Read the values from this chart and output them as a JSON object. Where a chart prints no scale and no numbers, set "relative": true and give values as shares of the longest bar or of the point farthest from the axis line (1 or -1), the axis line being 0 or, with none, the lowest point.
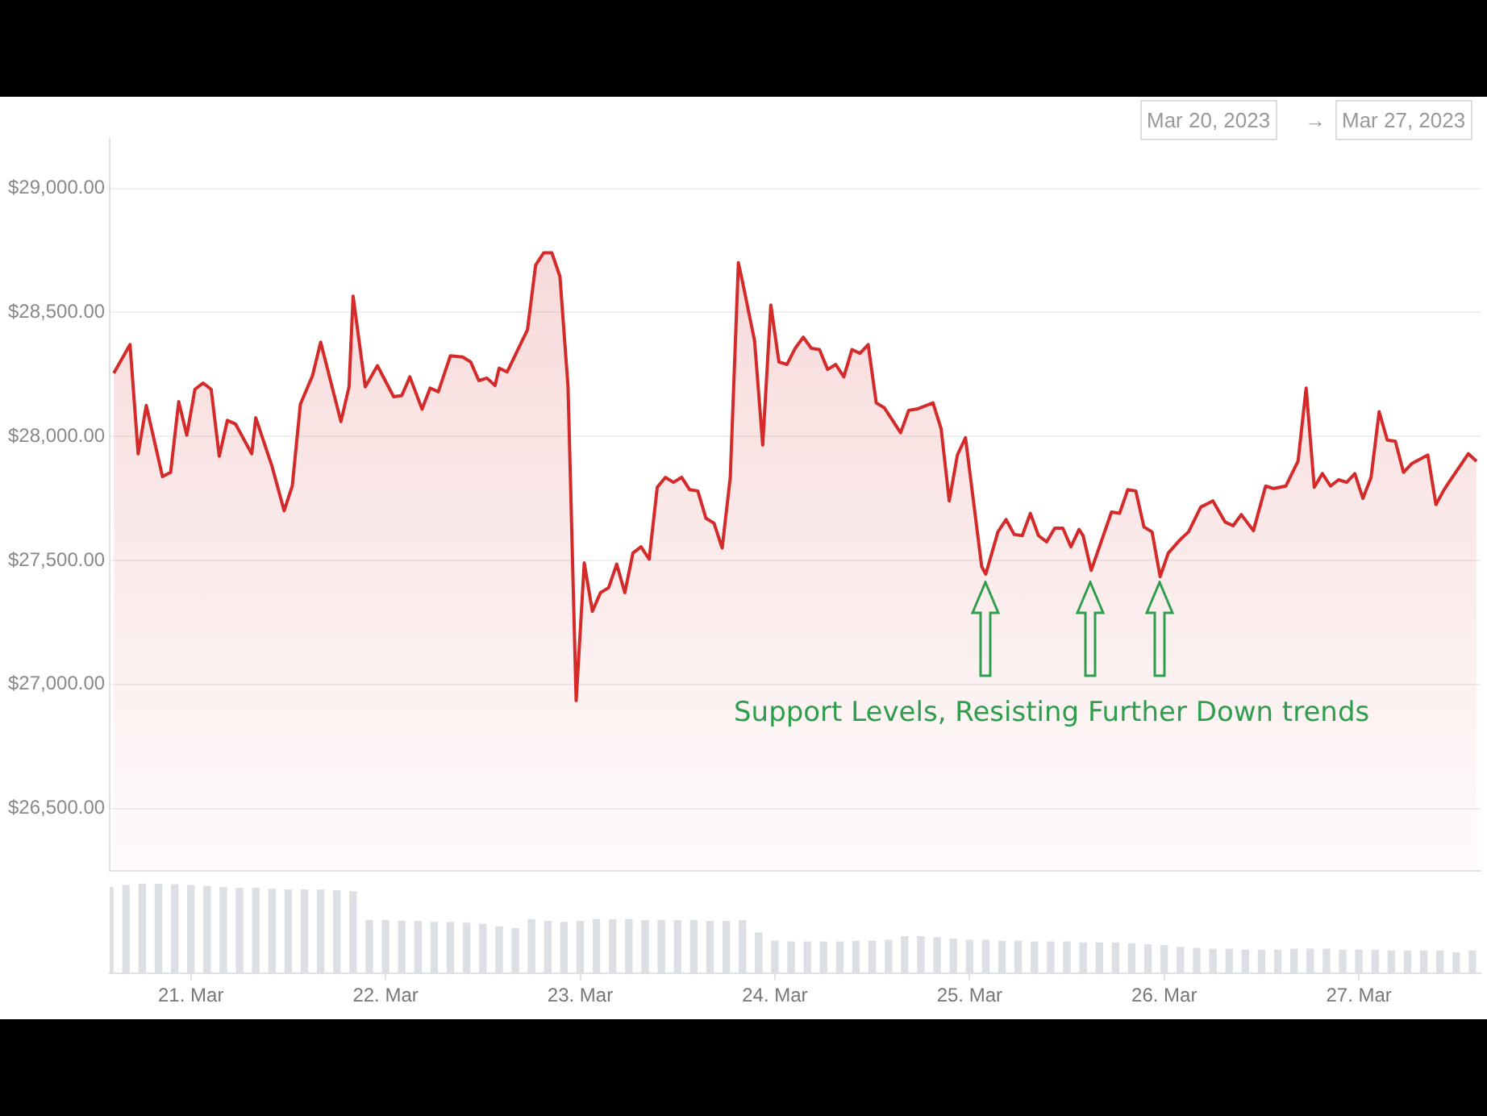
{
  "chart_data": [
    {
      "type": "area",
      "color": "#d42a2a",
      "grid": "y",
      "tick_labels": "y",
      "xlim": [
        "2023-03-20T14:00",
        "2023-03-27T15:00"
      ],
      "ylim": [
        26250,
        29200
      ],
      "yticks": [
        {
          "value": 26500,
          "label": "$26,500.00"
        },
        {
          "value": 27000,
          "label": "$27,000.00"
        },
        {
          "value": 27500,
          "label": "$27,500.00"
        },
        {
          "value": 28000,
          "label": "$28,000.00"
        },
        {
          "value": 28500,
          "label": "$28,500.00"
        },
        {
          "value": 29000,
          "label": "$29,000.00"
        }
      ],
      "annotations": [
        "Support Levels, Resisting Further  Down trends",
        "Mar 20, 2023",
        "→",
        "Mar 27, 2023"
      ],
      "x": [
        "2023-03-20T14:30",
        "2023-03-20T16:30",
        "2023-03-20T17:30",
        "2023-03-20T18:30",
        "2023-03-20T20:30",
        "2023-03-20T21:30",
        "2023-03-20T22:30",
        "2023-03-20T23:30",
        "2023-03-21T00:30",
        "2023-03-21T01:30",
        "2023-03-21T02:30",
        "2023-03-21T03:30",
        "2023-03-21T04:30",
        "2023-03-21T05:30",
        "2023-03-21T07:30",
        "2023-03-21T08:00",
        "2023-03-21T10:00",
        "2023-03-21T11:30",
        "2023-03-21T12:30",
        "2023-03-21T13:30",
        "2023-03-21T15:00",
        "2023-03-21T16:00",
        "2023-03-21T18:30",
        "2023-03-21T19:30",
        "2023-03-21T20:00",
        "2023-03-21T21:30",
        "2023-03-21T23:00",
        "2023-03-22T01:00",
        "2023-03-22T02:00",
        "2023-03-22T03:00",
        "2023-03-22T04:30",
        "2023-03-22T05:30",
        "2023-03-22T06:30",
        "2023-03-22T08:00",
        "2023-03-22T09:30",
        "2023-03-22T10:30",
        "2023-03-22T11:30",
        "2023-03-22T12:30",
        "2023-03-22T13:30",
        "2023-03-22T14:00",
        "2023-03-22T15:00",
        "2023-03-22T17:30",
        "2023-03-22T18:30",
        "2023-03-22T19:30",
        "2023-03-22T20:30",
        "2023-03-22T21:30",
        "2023-03-22T22:30",
        "2023-03-22T23:30",
        "2023-03-23T00:30",
        "2023-03-23T01:30",
        "2023-03-23T02:30",
        "2023-03-23T03:30",
        "2023-03-23T04:30",
        "2023-03-23T05:30",
        "2023-03-23T06:30",
        "2023-03-23T07:30",
        "2023-03-23T08:30",
        "2023-03-23T09:30",
        "2023-03-23T10:30",
        "2023-03-23T11:30",
        "2023-03-23T12:30",
        "2023-03-23T13:30",
        "2023-03-23T14:30",
        "2023-03-23T15:30",
        "2023-03-23T16:30",
        "2023-03-23T17:30",
        "2023-03-23T18:30",
        "2023-03-23T19:30",
        "2023-03-23T20:00",
        "2023-03-23T21:30",
        "2023-03-23T22:30",
        "2023-03-23T23:30",
        "2023-03-24T00:30",
        "2023-03-24T01:30",
        "2023-03-24T02:30",
        "2023-03-24T03:30",
        "2023-03-24T04:30",
        "2023-03-24T05:30",
        "2023-03-24T06:30",
        "2023-03-24T07:30",
        "2023-03-24T08:30",
        "2023-03-24T09:30",
        "2023-03-24T10:30",
        "2023-03-24T11:30",
        "2023-03-24T12:30",
        "2023-03-24T13:30",
        "2023-03-24T15:30",
        "2023-03-24T16:30",
        "2023-03-24T17:30",
        "2023-03-24T19:30",
        "2023-03-24T20:30",
        "2023-03-24T21:30",
        "2023-03-24T22:30",
        "2023-03-24T23:30",
        "2023-03-25T01:30",
        "2023-03-25T02:00",
        "2023-03-25T03:30",
        "2023-03-25T04:30",
        "2023-03-25T05:30",
        "2023-03-25T06:30",
        "2023-03-25T07:30",
        "2023-03-25T08:30",
        "2023-03-25T09:30",
        "2023-03-25T10:30",
        "2023-03-25T11:30",
        "2023-03-25T12:30",
        "2023-03-25T13:30",
        "2023-03-25T14:00",
        "2023-03-25T15:00",
        "2023-03-25T17:30",
        "2023-03-25T18:30",
        "2023-03-25T19:30",
        "2023-03-25T20:30",
        "2023-03-25T21:30",
        "2023-03-25T22:30",
        "2023-03-25T23:30",
        "2023-03-26T00:30",
        "2023-03-26T02:00",
        "2023-03-26T03:00",
        "2023-03-26T04:30",
        "2023-03-26T06:00",
        "2023-03-26T07:30",
        "2023-03-26T08:30",
        "2023-03-26T09:30",
        "2023-03-26T11:00",
        "2023-03-26T12:30",
        "2023-03-26T13:30",
        "2023-03-26T15:00",
        "2023-03-26T16:30",
        "2023-03-26T17:30",
        "2023-03-26T18:30",
        "2023-03-26T19:30",
        "2023-03-26T20:30",
        "2023-03-26T21:30",
        "2023-03-26T22:30",
        "2023-03-26T23:30",
        "2023-03-27T00:30",
        "2023-03-27T01:30",
        "2023-03-27T02:30",
        "2023-03-27T03:30",
        "2023-03-27T04:30",
        "2023-03-27T05:30",
        "2023-03-27T06:30",
        "2023-03-27T08:30",
        "2023-03-27T09:30",
        "2023-03-27T10:30",
        "2023-03-27T11:00",
        "2023-03-27T13:30",
        "2023-03-27T14:30"
      ],
      "values": [
        28255,
        28370,
        27930,
        28125,
        27838,
        27855,
        28140,
        28005,
        28190,
        28215,
        28190,
        27920,
        28065,
        28050,
        27930,
        28075,
        27880,
        27700,
        27800,
        28130,
        28245,
        28380,
        28060,
        28200,
        28565,
        28200,
        28285,
        28160,
        28165,
        28240,
        28110,
        28195,
        28180,
        28325,
        28320,
        28300,
        28225,
        28235,
        28205,
        28275,
        28260,
        28430,
        28690,
        28740,
        28740,
        28645,
        28200,
        26935,
        27490,
        27295,
        27370,
        27390,
        27485,
        27370,
        27530,
        27555,
        27505,
        27795,
        27835,
        27815,
        27835,
        27785,
        27780,
        27670,
        27650,
        27550,
        27835,
        28700,
        28625,
        28385,
        27965,
        28530,
        28300,
        28290,
        28355,
        28400,
        28355,
        28350,
        28270,
        28290,
        28240,
        28350,
        28335,
        28370,
        28135,
        28115,
        28015,
        28105,
        28110,
        28135,
        28030,
        27740,
        27925,
        27995,
        27475,
        27445,
        27615,
        27665,
        27605,
        27600,
        27690,
        27600,
        27575,
        27630,
        27630,
        27555,
        27625,
        27600,
        27460,
        27695,
        27690,
        27785,
        27780,
        27635,
        27615,
        27435,
        27530,
        27585,
        27615,
        27715,
        27740,
        27655,
        27640,
        27685,
        27620,
        27800,
        27790,
        27800,
        27900,
        28195,
        27795,
        27850,
        27800,
        27825,
        27815,
        27850,
        27750,
        27835,
        28100,
        27985,
        27980,
        27855,
        27890,
        27925,
        27725,
        27785,
        27810,
        27930,
        27900
      ]
    },
    {
      "type": "bar",
      "relative": true,
      "color": "#dcdfe4",
      "tick_labels": "x",
      "xlim": [
        "2023-03-20T14:00",
        "2023-03-27T15:00"
      ],
      "xticks": [
        {
          "value": "2023-03-21",
          "label": "21. Mar"
        },
        {
          "value": "2023-03-22",
          "label": "22. Mar"
        },
        {
          "value": "2023-03-23",
          "label": "23. Mar"
        },
        {
          "value": "2023-03-24",
          "label": "24. Mar"
        },
        {
          "value": "2023-03-25",
          "label": "25. Mar"
        },
        {
          "value": "2023-03-26",
          "label": "26. Mar"
        },
        {
          "value": "2023-03-27",
          "label": "27. Mar"
        }
      ],
      "x": [
        "2023-03-20T14:00",
        "2023-03-20T16:00",
        "2023-03-20T18:00",
        "2023-03-20T20:00",
        "2023-03-20T22:00",
        "2023-03-21T00:00",
        "2023-03-21T02:00",
        "2023-03-21T04:00",
        "2023-03-21T06:00",
        "2023-03-21T08:00",
        "2023-03-21T10:00",
        "2023-03-21T12:00",
        "2023-03-21T14:00",
        "2023-03-21T16:00",
        "2023-03-21T18:00",
        "2023-03-21T20:00",
        "2023-03-21T22:00",
        "2023-03-22T00:00",
        "2023-03-22T02:00",
        "2023-03-22T04:00",
        "2023-03-22T06:00",
        "2023-03-22T08:00",
        "2023-03-22T10:00",
        "2023-03-22T12:00",
        "2023-03-22T14:00",
        "2023-03-22T16:00",
        "2023-03-22T18:00",
        "2023-03-22T20:00",
        "2023-03-22T22:00",
        "2023-03-23T00:00",
        "2023-03-23T02:00",
        "2023-03-23T04:00",
        "2023-03-23T06:00",
        "2023-03-23T08:00",
        "2023-03-23T10:00",
        "2023-03-23T12:00",
        "2023-03-23T14:00",
        "2023-03-23T16:00",
        "2023-03-23T18:00",
        "2023-03-23T20:00",
        "2023-03-23T22:00",
        "2023-03-24T00:00",
        "2023-03-24T02:00",
        "2023-03-24T04:00",
        "2023-03-24T06:00",
        "2023-03-24T08:00",
        "2023-03-24T10:00",
        "2023-03-24T12:00",
        "2023-03-24T14:00",
        "2023-03-24T16:00",
        "2023-03-24T18:00",
        "2023-03-24T20:00",
        "2023-03-24T22:00",
        "2023-03-25T00:00",
        "2023-03-25T02:00",
        "2023-03-25T04:00",
        "2023-03-25T06:00",
        "2023-03-25T08:00",
        "2023-03-25T10:00",
        "2023-03-25T12:00",
        "2023-03-25T14:00",
        "2023-03-25T16:00",
        "2023-03-25T18:00",
        "2023-03-25T20:00",
        "2023-03-25T22:00",
        "2023-03-26T00:00",
        "2023-03-26T02:00",
        "2023-03-26T04:00",
        "2023-03-26T06:00",
        "2023-03-26T08:00",
        "2023-03-26T10:00",
        "2023-03-26T12:00",
        "2023-03-26T14:00",
        "2023-03-26T16:00",
        "2023-03-26T18:00",
        "2023-03-26T20:00",
        "2023-03-26T22:00",
        "2023-03-27T00:00",
        "2023-03-27T02:00",
        "2023-03-27T04:00",
        "2023-03-27T06:00",
        "2023-03-27T08:00",
        "2023-03-27T10:00",
        "2023-03-27T12:00",
        "2023-03-27T14:00"
      ],
      "values": [
        0.96,
        0.98,
        1.0,
        1.0,
        0.99,
        0.98,
        0.97,
        0.96,
        0.95,
        0.95,
        0.94,
        0.93,
        0.93,
        0.93,
        0.92,
        0.91,
        0.59,
        0.59,
        0.58,
        0.58,
        0.57,
        0.57,
        0.56,
        0.55,
        0.52,
        0.5,
        0.6,
        0.58,
        0.57,
        0.58,
        0.6,
        0.6,
        0.6,
        0.59,
        0.59,
        0.59,
        0.59,
        0.58,
        0.58,
        0.59,
        0.45,
        0.36,
        0.35,
        0.35,
        0.35,
        0.35,
        0.36,
        0.36,
        0.37,
        0.41,
        0.41,
        0.4,
        0.38,
        0.37,
        0.37,
        0.36,
        0.36,
        0.35,
        0.35,
        0.35,
        0.34,
        0.34,
        0.34,
        0.33,
        0.32,
        0.31,
        0.29,
        0.28,
        0.27,
        0.27,
        0.26,
        0.26,
        0.26,
        0.27,
        0.27,
        0.27,
        0.26,
        0.26,
        0.26,
        0.25,
        0.25,
        0.25,
        0.25,
        0.23,
        0.25
      ]
    }
  ]
}
